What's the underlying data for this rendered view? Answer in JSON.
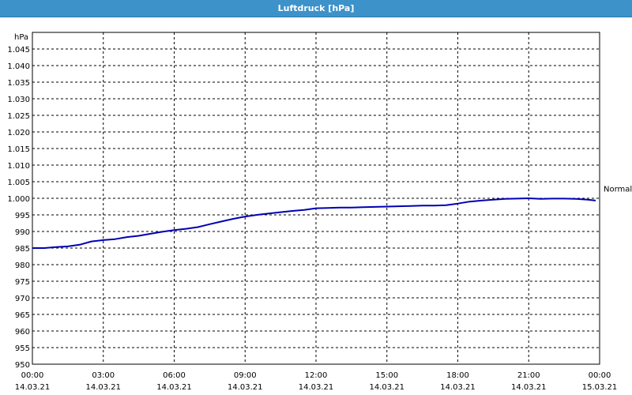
{
  "window": {
    "title": "Luftdruck [hPa]"
  },
  "chart_data": {
    "type": "line",
    "title": "Luftdruck [hPa]",
    "ylabel": "hPa",
    "xlabel": "",
    "ylim": [
      950,
      1050
    ],
    "y_ticks": [
      "1.045",
      "1.040",
      "1.035",
      "1.030",
      "1.025",
      "1.020",
      "1.015",
      "1.010",
      "1.005",
      "1.000",
      "995",
      "990",
      "985",
      "980",
      "975",
      "970",
      "965",
      "960",
      "955",
      "950"
    ],
    "x_ticks": [
      {
        "time": "00:00",
        "date": "14.03.21"
      },
      {
        "time": "03:00",
        "date": "14.03.21"
      },
      {
        "time": "06:00",
        "date": "14.03.21"
      },
      {
        "time": "09:00",
        "date": "14.03.21"
      },
      {
        "time": "12:00",
        "date": "14.03.21"
      },
      {
        "time": "15:00",
        "date": "14.03.21"
      },
      {
        "time": "18:00",
        "date": "14.03.21"
      },
      {
        "time": "21:00",
        "date": "14.03.21"
      },
      {
        "time": "00:00",
        "date": "15.03.21"
      }
    ],
    "reference_line": {
      "label": "Normal",
      "value": 1003
    },
    "grid": true,
    "series_color": "#0000b4",
    "series": [
      {
        "x": [
          "14.03.21 00:00",
          "14.03.21 00:30",
          "14.03.21 01:00",
          "14.03.21 01:30",
          "14.03.21 02:00",
          "14.03.21 02:30",
          "14.03.21 03:00",
          "14.03.21 03:30",
          "14.03.21 04:00",
          "14.03.21 04:30",
          "14.03.21 05:00",
          "14.03.21 05:30",
          "14.03.21 06:00",
          "14.03.21 06:30",
          "14.03.21 07:00",
          "14.03.21 07:30",
          "14.03.21 08:00",
          "14.03.21 08:30",
          "14.03.21 09:00",
          "14.03.21 09:30",
          "14.03.21 10:00",
          "14.03.21 10:30",
          "14.03.21 11:00",
          "14.03.21 11:30",
          "14.03.21 12:00",
          "14.03.21 12:30",
          "14.03.21 13:00",
          "14.03.21 13:30",
          "14.03.21 14:00",
          "14.03.21 14:30",
          "14.03.21 15:00",
          "14.03.21 15:30",
          "14.03.21 16:00",
          "14.03.21 16:30",
          "14.03.21 17:00",
          "14.03.21 17:30",
          "14.03.21 18:00",
          "14.03.21 18:30",
          "14.03.21 19:00",
          "14.03.21 19:30",
          "14.03.21 20:00",
          "14.03.21 20:30",
          "14.03.21 21:00",
          "14.03.21 21:30",
          "14.03.21 22:00",
          "14.03.21 22:30",
          "14.03.21 23:00",
          "14.03.21 23:30",
          "14.03.21 23:50"
        ],
        "values": [
          985.0,
          985.0,
          985.3,
          985.5,
          986.0,
          987.0,
          987.4,
          987.7,
          988.3,
          988.7,
          989.3,
          989.9,
          990.4,
          990.8,
          991.3,
          992.2,
          993.0,
          993.8,
          994.5,
          995.0,
          995.4,
          995.8,
          996.2,
          996.5,
          997.0,
          997.1,
          997.2,
          997.2,
          997.3,
          997.4,
          997.5,
          997.6,
          997.7,
          997.8,
          997.8,
          997.9,
          998.4,
          999.0,
          999.3,
          999.6,
          999.8,
          999.9,
          1000.0,
          999.8,
          999.9,
          999.9,
          999.8,
          999.6,
          999.3
        ]
      }
    ]
  }
}
